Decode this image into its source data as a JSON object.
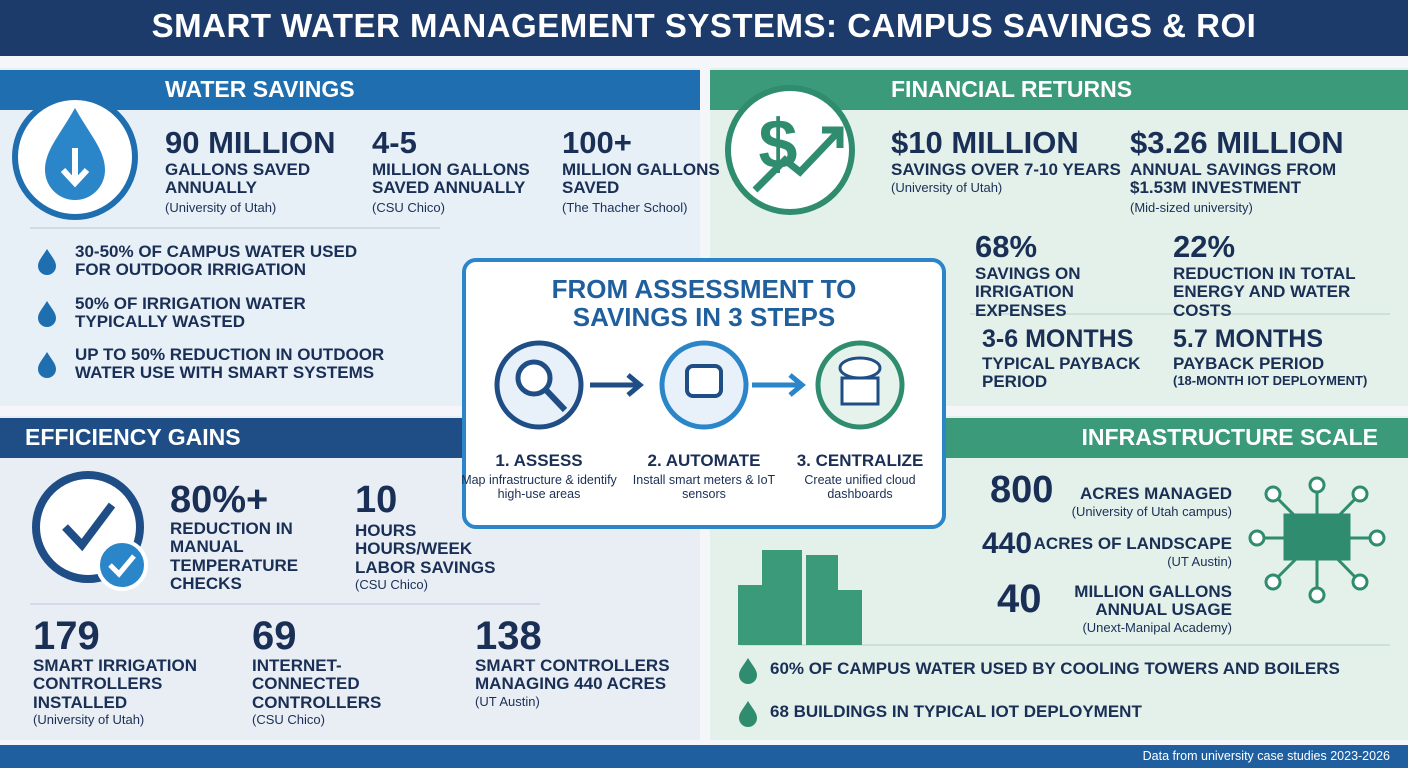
{
  "title": "SMART WATER MANAGEMENT SYSTEMS: CAMPUS SAVINGS & ROI",
  "water_savings": {
    "heading": "WATER SAVINGS",
    "stats": [
      {
        "value": "90 MILLION",
        "label": "GALLONS SAVED ANNUALLY",
        "source": "(University of Utah)"
      },
      {
        "value": "4-5",
        "label": "MILLION GALLONS SAVED ANNUALLY",
        "source": "(CSU Chico)"
      },
      {
        "value": "100+",
        "label": "MILLION GALLONS SAVED",
        "source": "(The Thacher School)"
      }
    ],
    "bullets": [
      "30-50% OF CAMPUS WATER USED FOR OUTDOOR IRRIGATION",
      "50% OF IRRIGATION WATER TYPICALLY WASTED",
      "UP TO 50% REDUCTION IN OUTDOOR WATER USE WITH SMART SYSTEMS"
    ]
  },
  "financial_returns": {
    "heading": "FINANCIAL RETURNS",
    "stats": [
      {
        "value": "$10 MILLION",
        "label": "SAVINGS OVER 7-10 YEARS",
        "source": "(University of Utah)"
      },
      {
        "value": "$3.26 MILLION",
        "label": "ANNUAL SAVINGS FROM $1.53M INVESTMENT",
        "source": "(Mid-sized university)"
      }
    ],
    "percent_stats": [
      {
        "value": "68%",
        "label": "SAVINGS ON IRRIGATION EXPENSES"
      },
      {
        "value": "22%",
        "label": "REDUCTION IN TOTAL ENERGY AND WATER COSTS"
      }
    ],
    "payback": [
      {
        "value": "3-6 MONTHS",
        "label": "TYPICAL PAYBACK PERIOD"
      },
      {
        "value": "5.7 MONTHS",
        "label": "PAYBACK PERIOD",
        "source": "(18-MONTH IOT DEPLOYMENT)"
      }
    ]
  },
  "steps": {
    "title": "FROM ASSESSMENT TO SAVINGS IN 3 STEPS",
    "items": [
      {
        "name": "1. ASSESS",
        "description": "Map infrastructure & identify high-use areas"
      },
      {
        "name": "2. AUTOMATE",
        "description": "Install smart meters & IoT sensors"
      },
      {
        "name": "3. CENTRALIZE",
        "description": "Create unified cloud dashboards"
      }
    ]
  },
  "efficiency_gains": {
    "heading": "EFFICIENCY GAINS",
    "top_stats": [
      {
        "value": "80%+",
        "label": "REDUCTION IN MANUAL TEMPERATURE CHECKS"
      },
      {
        "value": "10",
        "label": "HOURS HOURS/WEEK LABOR SAVINGS",
        "source": "(CSU Chico)"
      }
    ],
    "bottom_stats": [
      {
        "value": "179",
        "label": "SMART IRRIGATION CONTROLLERS INSTALLED",
        "source": "(University of Utah)"
      },
      {
        "value": "69",
        "label": "INTERNET-CONNECTED CONTROLLERS",
        "source": "(CSU Chico)"
      },
      {
        "value": "138",
        "label": "SMART CONTROLLERS MANAGING 440 ACRES",
        "source": "(UT Austin)"
      }
    ]
  },
  "infrastructure_scale": {
    "heading": "INFRASTRUCTURE SCALE",
    "stats": [
      {
        "value": "800",
        "label": "ACRES MANAGED",
        "source": "(University of Utah campus)"
      },
      {
        "value": "440",
        "label": "ACRES OF LANDSCAPE",
        "source": "(UT Austin)"
      },
      {
        "value": "40",
        "label": "MILLION GALLONS ANNUAL USAGE",
        "source": "(Unext-Manipal Academy)"
      }
    ],
    "bullets": [
      "60% OF CAMPUS WATER USED BY COOLING TOWERS AND BOILERS",
      "68 BUILDINGS IN TYPICAL IOT DEPLOYMENT"
    ]
  },
  "footer": "Data from university case studies 2023-2026"
}
